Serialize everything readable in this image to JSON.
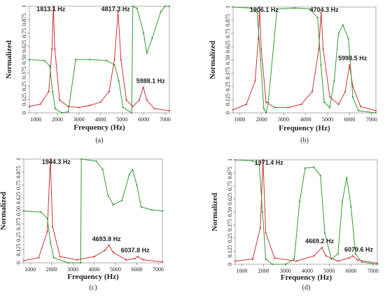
{
  "chart_data": [
    {
      "type": "line",
      "caption": "(a)",
      "xlabel": "Frequency (Hz)",
      "ylabel": "Normalized",
      "xlim": [
        700,
        7200
      ],
      "ylim": [
        0,
        1
      ],
      "xticks": [
        "1000",
        "2000",
        "3000",
        "4000",
        "5000",
        "6000",
        "7000"
      ],
      "yticks": [
        "0",
        "0.125",
        "0.25",
        "0.375",
        "0.50",
        "0.625",
        "0.75",
        "0.875",
        "1"
      ],
      "peaks": [
        "1813.1 Hz",
        "4817.3 Hz",
        "5988.1 Hz"
      ],
      "colors": {
        "magnitude": "#cc3333",
        "phase": "#339933"
      },
      "series": [
        {
          "values": [
            [
              700,
              0.06
            ],
            [
              1200,
              0.08
            ],
            [
              1600,
              0.2
            ],
            [
              1750,
              0.6
            ],
            [
              1813,
              1.0
            ],
            [
              1880,
              0.6
            ],
            [
              2100,
              0.12
            ],
            [
              2500,
              0.06
            ],
            [
              3000,
              0.05
            ],
            [
              3500,
              0.07
            ],
            [
              4000,
              0.1
            ],
            [
              4400,
              0.2
            ],
            [
              4650,
              0.5
            ],
            [
              4817,
              0.95
            ],
            [
              4950,
              0.5
            ],
            [
              5200,
              0.12
            ],
            [
              5500,
              0.06
            ],
            [
              5800,
              0.12
            ],
            [
              5988,
              0.24
            ],
            [
              6150,
              0.12
            ],
            [
              6500,
              0.04
            ],
            [
              7200,
              0.02
            ]
          ]
        },
        {
          "values": [
            [
              700,
              0.5
            ],
            [
              1400,
              0.49
            ],
            [
              1650,
              0.44
            ],
            [
              1780,
              0.2
            ],
            [
              1900,
              0.04
            ],
            [
              2200,
              0.0
            ],
            [
              2500,
              0.01
            ],
            [
              2850,
              0.5
            ],
            [
              3500,
              0.5
            ],
            [
              4300,
              0.49
            ],
            [
              4650,
              0.45
            ],
            [
              4850,
              0.3
            ],
            [
              5050,
              0.05
            ],
            [
              5450,
              0.0
            ],
            [
              5500,
              1.0
            ],
            [
              5700,
              0.98
            ],
            [
              6000,
              0.75
            ],
            [
              6150,
              0.56
            ],
            [
              6400,
              0.7
            ],
            [
              6800,
              0.95
            ],
            [
              7000,
              1.0
            ],
            [
              7200,
              1.0
            ]
          ]
        }
      ]
    },
    {
      "type": "line",
      "caption": "(b)",
      "xlabel": "Frequency (Hz)",
      "ylabel": "Normalized",
      "xlim": [
        700,
        7200
      ],
      "ylim": [
        0,
        1
      ],
      "xticks": [
        "1000",
        "2000",
        "3000",
        "4000",
        "5000",
        "6000",
        "7000"
      ],
      "yticks": [
        "0",
        "0.125",
        "0.25",
        "0.375",
        "0.50",
        "0.625",
        "0.75",
        "0.875",
        "1"
      ],
      "peaks": [
        "1906.1 Hz",
        "4704.3 Hz",
        "5998.5 Hz"
      ],
      "colors": {
        "magnitude": "#cc3333",
        "phase": "#339933"
      },
      "series": [
        {
          "values": [
            [
              700,
              0.03
            ],
            [
              1300,
              0.08
            ],
            [
              1700,
              0.3
            ],
            [
              1850,
              0.7
            ],
            [
              1906,
              1.0
            ],
            [
              1980,
              0.6
            ],
            [
              2200,
              0.1
            ],
            [
              2600,
              0.05
            ],
            [
              3200,
              0.05
            ],
            [
              3800,
              0.08
            ],
            [
              4300,
              0.2
            ],
            [
              4600,
              0.6
            ],
            [
              4704,
              0.95
            ],
            [
              4800,
              0.6
            ],
            [
              5100,
              0.15
            ],
            [
              5500,
              0.08
            ],
            [
              5800,
              0.2
            ],
            [
              5998,
              0.45
            ],
            [
              6150,
              0.25
            ],
            [
              6500,
              0.06
            ],
            [
              7200,
              0.02
            ]
          ]
        },
        {
          "values": [
            [
              700,
              1.0
            ],
            [
              1500,
              0.99
            ],
            [
              1800,
              0.95
            ],
            [
              1950,
              0.5
            ],
            [
              2100,
              0.04
            ],
            [
              2200,
              0.0
            ],
            [
              2300,
              0.1
            ],
            [
              2700,
              0.98
            ],
            [
              3500,
              0.99
            ],
            [
              4200,
              0.98
            ],
            [
              4550,
              0.9
            ],
            [
              4700,
              0.45
            ],
            [
              4850,
              0.1
            ],
            [
              5100,
              0.05
            ],
            [
              5300,
              0.3
            ],
            [
              5500,
              0.75
            ],
            [
              5700,
              0.83
            ],
            [
              5950,
              0.7
            ],
            [
              6150,
              0.15
            ],
            [
              6400,
              0.02
            ],
            [
              7200,
              0.0
            ]
          ]
        }
      ]
    },
    {
      "type": "line",
      "caption": "(c)",
      "xlabel": "Frequency (Hz)",
      "ylabel": "Normalized",
      "xlim": [
        700,
        7200
      ],
      "ylim": [
        0,
        1
      ],
      "xticks": [
        "1000",
        "2000",
        "3000",
        "4000",
        "5000",
        "6000",
        "7000"
      ],
      "yticks": [
        "0",
        "0.125",
        "0.25",
        "0.375",
        "0.50",
        "0.625",
        "0.75",
        "0.875",
        "1"
      ],
      "peaks": [
        "1944.3 Hz",
        "4693.8 Hz",
        "6037.8 Hz"
      ],
      "colors": {
        "magnitude": "#cc3333",
        "phase": "#339933"
      },
      "series": [
        {
          "values": [
            [
              700,
              0.02
            ],
            [
              1400,
              0.05
            ],
            [
              1800,
              0.3
            ],
            [
              1944,
              1.0
            ],
            [
              2050,
              0.35
            ],
            [
              2400,
              0.06
            ],
            [
              3200,
              0.03
            ],
            [
              4000,
              0.06
            ],
            [
              4500,
              0.12
            ],
            [
              4694,
              0.17
            ],
            [
              4900,
              0.1
            ],
            [
              5500,
              0.03
            ],
            [
              5900,
              0.04
            ],
            [
              6038,
              0.06
            ],
            [
              6300,
              0.03
            ],
            [
              7200,
              0.01
            ]
          ]
        },
        {
          "values": [
            [
              700,
              0.5
            ],
            [
              1500,
              0.49
            ],
            [
              1800,
              0.43
            ],
            [
              1950,
              0.2
            ],
            [
              2100,
              0.05
            ],
            [
              2800,
              0.0
            ],
            [
              3370,
              0.0
            ],
            [
              3400,
              1.0
            ],
            [
              4100,
              0.98
            ],
            [
              4400,
              0.9
            ],
            [
              4650,
              0.65
            ],
            [
              4900,
              0.56
            ],
            [
              5300,
              0.6
            ],
            [
              5650,
              0.85
            ],
            [
              5800,
              0.9
            ],
            [
              6000,
              0.75
            ],
            [
              6200,
              0.54
            ],
            [
              6700,
              0.51
            ],
            [
              7200,
              0.5
            ]
          ]
        }
      ]
    },
    {
      "type": "line",
      "caption": "(d)",
      "xlabel": "Frequency (Hz)",
      "ylabel": "Normalized",
      "xlim": [
        700,
        7200
      ],
      "ylim": [
        0,
        1
      ],
      "xticks": [
        "1000",
        "2000",
        "3000",
        "4000",
        "5000",
        "6000",
        "7000"
      ],
      "yticks": [
        "0",
        "0.125",
        "0.25",
        "0.375",
        "0.50",
        "0.625",
        "0.75",
        "0.875",
        "1"
      ],
      "peaks": [
        "1971.4 Hz",
        "4669.2 Hz",
        "6079.6 Hz"
      ],
      "colors": {
        "magnitude": "#cc3333",
        "phase": "#339933"
      },
      "series": [
        {
          "values": [
            [
              700,
              0.03
            ],
            [
              1500,
              0.05
            ],
            [
              1850,
              0.35
            ],
            [
              1971,
              1.0
            ],
            [
              2100,
              0.3
            ],
            [
              2500,
              0.06
            ],
            [
              3500,
              0.03
            ],
            [
              4300,
              0.08
            ],
            [
              4669,
              0.16
            ],
            [
              4850,
              0.08
            ],
            [
              5400,
              0.03
            ],
            [
              5900,
              0.06
            ],
            [
              6080,
              0.08
            ],
            [
              6300,
              0.04
            ],
            [
              7200,
              0.01
            ]
          ]
        },
        {
          "values": [
            [
              700,
              1.0
            ],
            [
              1500,
              0.99
            ],
            [
              1800,
              0.95
            ],
            [
              1950,
              0.5
            ],
            [
              2100,
              0.05
            ],
            [
              2400,
              0.0
            ],
            [
              3000,
              0.0
            ],
            [
              3400,
              0.05
            ],
            [
              3650,
              0.6
            ],
            [
              3900,
              0.92
            ],
            [
              4300,
              0.93
            ],
            [
              4600,
              0.85
            ],
            [
              4800,
              0.3
            ],
            [
              5100,
              0.05
            ],
            [
              5400,
              0.1
            ],
            [
              5600,
              0.6
            ],
            [
              5800,
              0.83
            ],
            [
              6000,
              0.55
            ],
            [
              6200,
              0.1
            ],
            [
              6500,
              0.02
            ],
            [
              7200,
              0.0
            ]
          ]
        }
      ]
    }
  ]
}
